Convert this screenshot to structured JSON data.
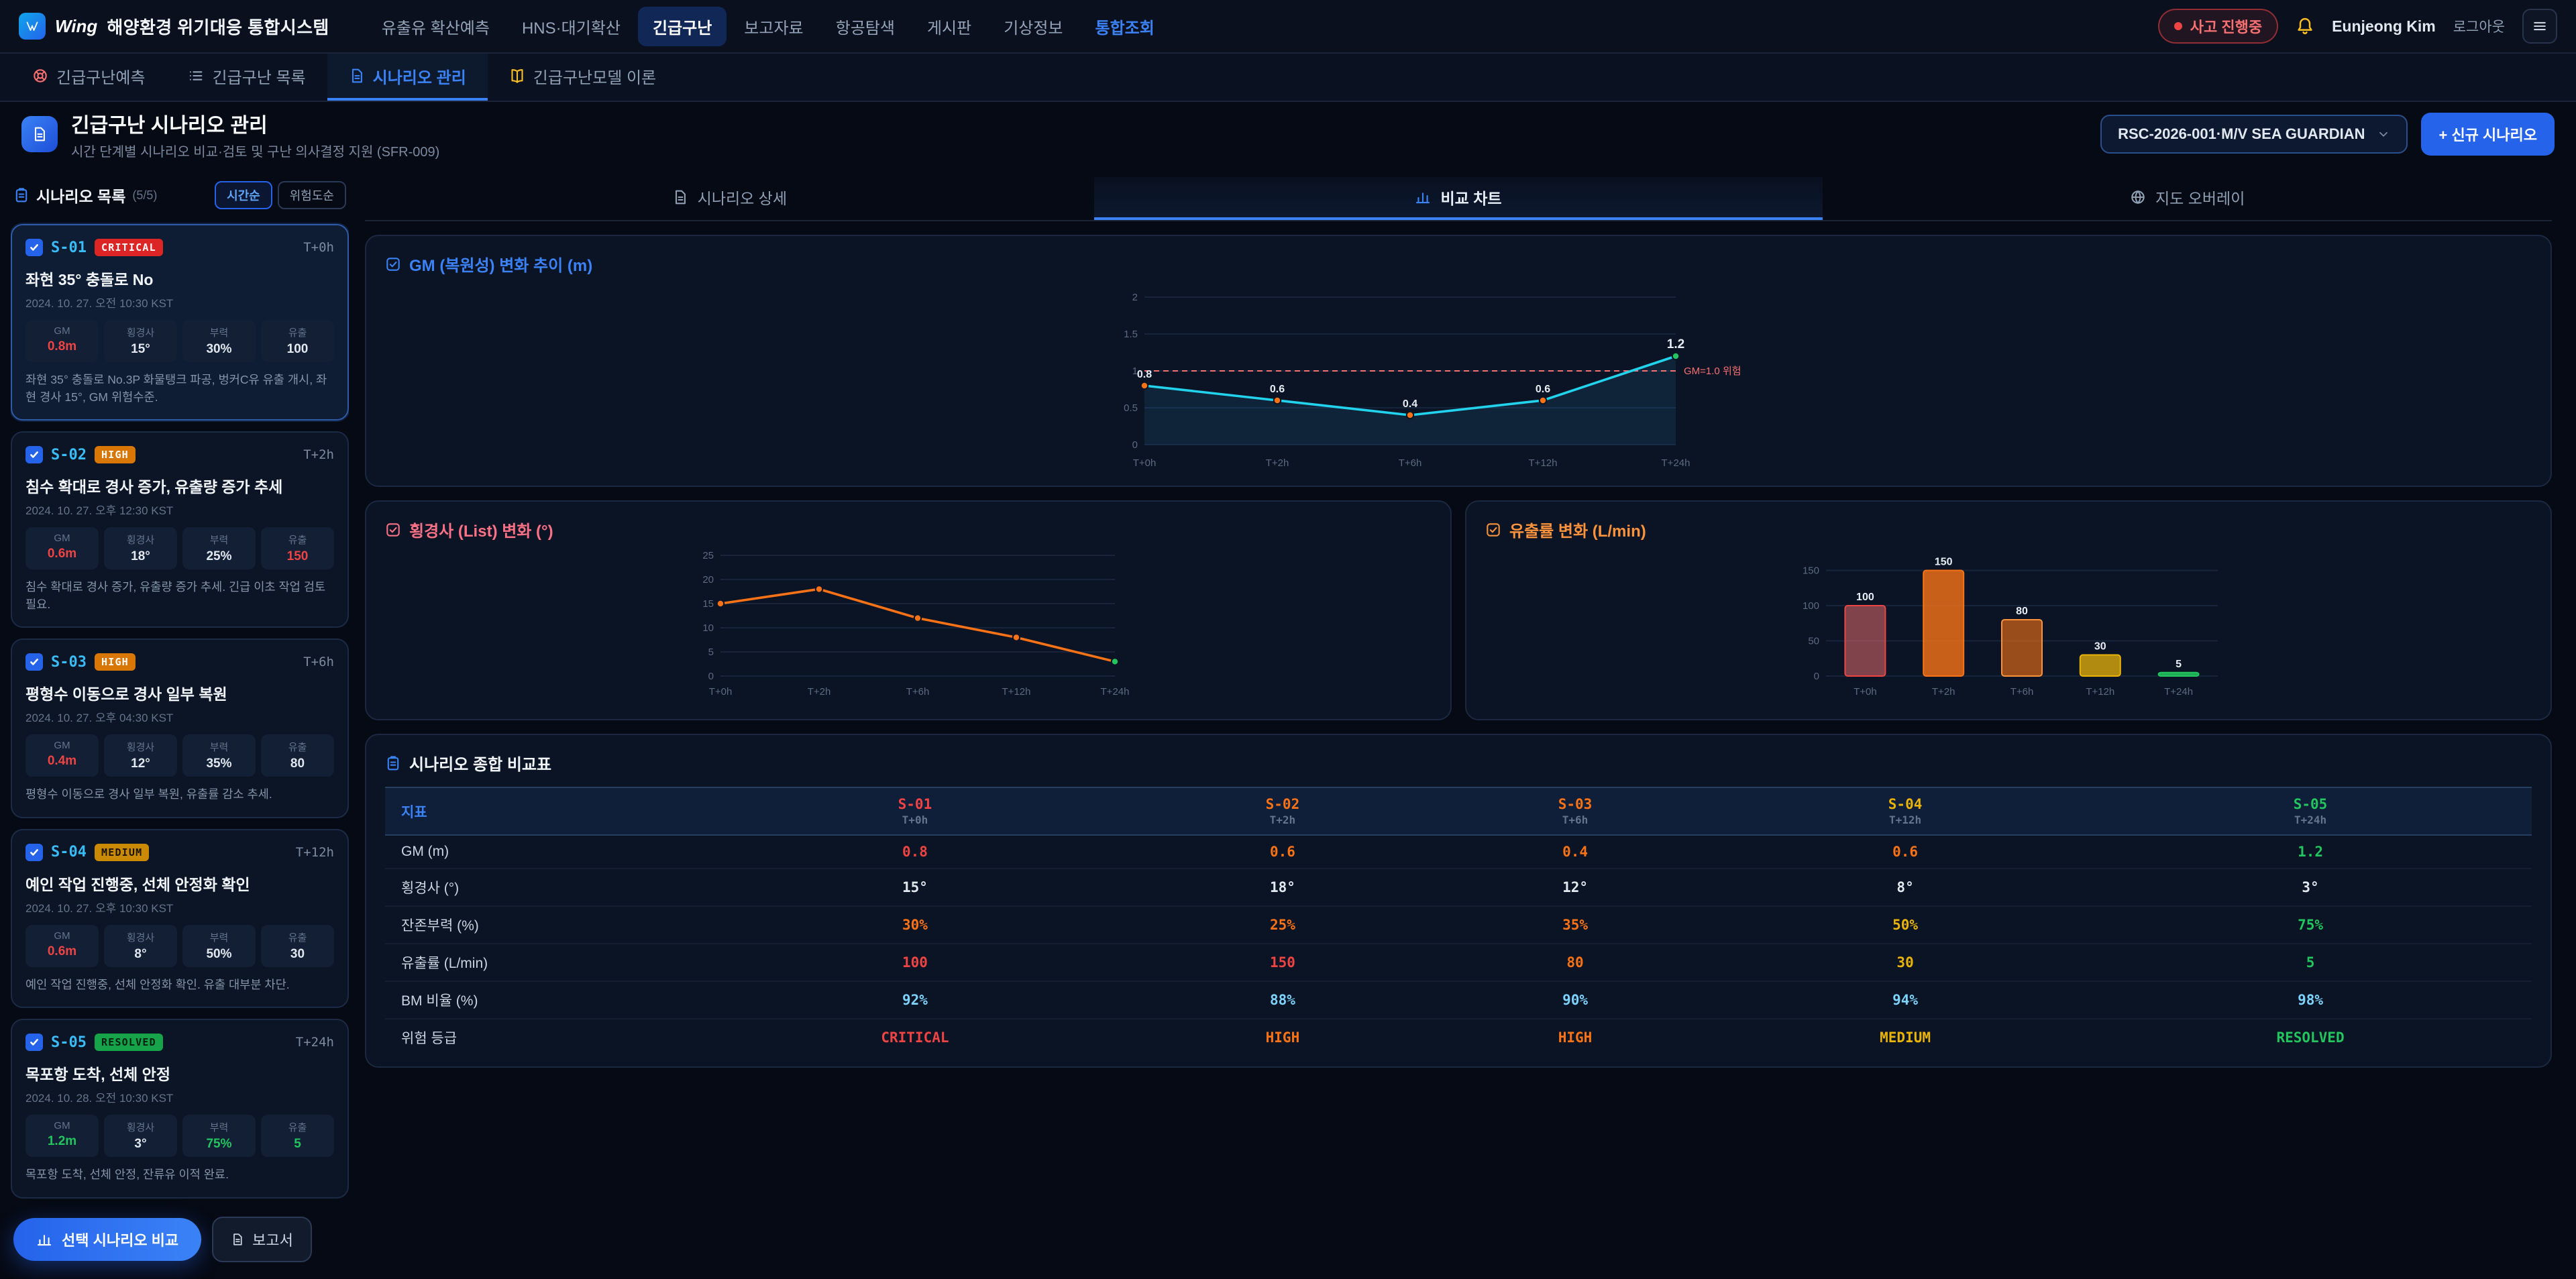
{
  "topnav": {
    "logo_text": "Wing",
    "app_title": "해양환경 위기대응 통합시스템",
    "items": [
      {
        "label": "유출유 확산예측",
        "state": "normal"
      },
      {
        "label": "HNS·대기확산",
        "state": "normal"
      },
      {
        "label": "긴급구난",
        "state": "active"
      },
      {
        "label": "보고자료",
        "state": "normal"
      },
      {
        "label": "항공탐색",
        "state": "normal"
      },
      {
        "label": "게시판",
        "state": "normal"
      },
      {
        "label": "기상정보",
        "state": "normal"
      },
      {
        "label": "통합조회",
        "state": "accent"
      }
    ],
    "incident_badge": "사고 진행중",
    "user_name": "Eunjeong Kim",
    "logout_label": "로그아웃"
  },
  "subtabs": [
    {
      "label": "긴급구난예측",
      "icon": "life-ring-icon",
      "icon_color": "#f87171",
      "active": false
    },
    {
      "label": "긴급구난 목록",
      "icon": "list-icon",
      "icon_color": "#94a3b8",
      "active": false
    },
    {
      "label": "시나리오 관리",
      "icon": "doc-icon",
      "icon_color": "#3b82f6",
      "active": true
    },
    {
      "label": "긴급구난모델 이론",
      "icon": "book-icon",
      "icon_color": "#fbbf24",
      "active": false
    }
  ],
  "page_header": {
    "title": "긴급구난 시나리오 관리",
    "subtitle": "시간 단계별 시나리오 비교·검토 및 구난 의사결정 지원 (SFR-009)",
    "vessel_selector": "RSC-2026-001·M/V SEA GUARDIAN",
    "new_scenario_button": "+ 신규 시나리오"
  },
  "sidebar": {
    "title": "시나리오 목록",
    "count": "(5/5)",
    "sort_buttons": [
      {
        "label": "시간순",
        "active": true
      },
      {
        "label": "위험도순",
        "active": false
      }
    ],
    "scenarios": [
      {
        "id": "S-01",
        "risk": "CRITICAL",
        "badge_bg": "#dc2626",
        "badge_fg": "#ffffff",
        "time_offset": "T+0h",
        "selected": true,
        "title": "좌현 35° 충돌로 No",
        "datetime": "2024. 10. 27. 오전 10:30 KST",
        "stats": [
          {
            "label": "GM",
            "value": "0.8m",
            "color": "#ef4444"
          },
          {
            "label": "횡경사",
            "value": "15°",
            "color": "#e2e8f0"
          },
          {
            "label": "부력",
            "value": "30%",
            "color": "#e2e8f0"
          },
          {
            "label": "유출",
            "value": "100",
            "color": "#e2e8f0"
          }
        ],
        "description": "좌현 35° 충돌로 No.3P 화물탱크 파공, 벙커C유 유출 개시, 좌현 경사 15°, GM 위험수준."
      },
      {
        "id": "S-02",
        "risk": "HIGH",
        "badge_bg": "#d97706",
        "badge_fg": "#ffffff",
        "time_offset": "T+2h",
        "selected": true,
        "title": "침수 확대로 경사 증가, 유출량 증가 추세",
        "datetime": "2024. 10. 27. 오후 12:30 KST",
        "stats": [
          {
            "label": "GM",
            "value": "0.6m",
            "color": "#ef4444"
          },
          {
            "label": "횡경사",
            "value": "18°",
            "color": "#e2e8f0"
          },
          {
            "label": "부력",
            "value": "25%",
            "color": "#e2e8f0"
          },
          {
            "label": "유출",
            "value": "150",
            "color": "#ef4444"
          }
        ],
        "description": "침수 확대로 경사 증가, 유출량 증가 추세. 긴급 이초 작업 검토 필요."
      },
      {
        "id": "S-03",
        "risk": "HIGH",
        "badge_bg": "#d97706",
        "badge_fg": "#ffffff",
        "time_offset": "T+6h",
        "selected": true,
        "title": "평형수 이동으로 경사 일부 복원",
        "datetime": "2024. 10. 27. 오후 04:30 KST",
        "stats": [
          {
            "label": "GM",
            "value": "0.4m",
            "color": "#ef4444"
          },
          {
            "label": "횡경사",
            "value": "12°",
            "color": "#e2e8f0"
          },
          {
            "label": "부력",
            "value": "35%",
            "color": "#e2e8f0"
          },
          {
            "label": "유출",
            "value": "80",
            "color": "#e2e8f0"
          }
        ],
        "description": "평형수 이동으로 경사 일부 복원, 유출률 감소 추세."
      },
      {
        "id": "S-04",
        "risk": "MEDIUM",
        "badge_bg": "#ca8a04",
        "badge_fg": "#1a1400",
        "time_offset": "T+12h",
        "selected": true,
        "title": "예인 작업 진행중, 선체 안정화 확인",
        "datetime": "2024. 10. 27. 오후 10:30 KST",
        "stats": [
          {
            "label": "GM",
            "value": "0.6m",
            "color": "#ef4444"
          },
          {
            "label": "횡경사",
            "value": "8°",
            "color": "#e2e8f0"
          },
          {
            "label": "부력",
            "value": "50%",
            "color": "#e2e8f0"
          },
          {
            "label": "유출",
            "value": "30",
            "color": "#e2e8f0"
          }
        ],
        "description": "예인 작업 진행중, 선체 안정화 확인. 유출 대부분 차단."
      },
      {
        "id": "S-05",
        "risk": "RESOLVED",
        "badge_bg": "#16a34a",
        "badge_fg": "#04210f",
        "time_offset": "T+24h",
        "selected": true,
        "title": "목포항 도착, 선체 안정",
        "datetime": "2024. 10. 28. 오전 10:30 KST",
        "stats": [
          {
            "label": "GM",
            "value": "1.2m",
            "color": "#22c55e"
          },
          {
            "label": "횡경사",
            "value": "3°",
            "color": "#e2e8f0"
          },
          {
            "label": "부력",
            "value": "75%",
            "color": "#22c55e"
          },
          {
            "label": "유출",
            "value": "5",
            "color": "#22c55e"
          }
        ],
        "description": "목포항 도착, 선체 안정, 잔류유 이적 완료."
      }
    ]
  },
  "content_tabs": [
    {
      "label": "시나리오 상세",
      "icon": "doc-icon",
      "active": false
    },
    {
      "label": "비교 차트",
      "icon": "bar-chart-icon",
      "active": true
    },
    {
      "label": "지도 오버레이",
      "icon": "map-icon",
      "active": false
    }
  ],
  "chart_data": [
    {
      "id": "gm",
      "type": "line",
      "title": "GM (복원성) 변화 추이 (m)",
      "categories": [
        "T+0h",
        "T+2h",
        "T+6h",
        "T+12h",
        "T+24h"
      ],
      "values": [
        0.8,
        0.6,
        0.4,
        0.6,
        1.2
      ],
      "ylim": [
        0,
        2
      ],
      "yticks": [
        0,
        0.5,
        1,
        1.5,
        2
      ],
      "threshold": {
        "value": 1.0,
        "label": "GM=1.0 위험",
        "color": "#f87171"
      },
      "line_color": "#22d3ee",
      "point_colors": [
        "#f97316",
        "#f97316",
        "#f97316",
        "#f97316",
        "#22c55e"
      ],
      "area_fill": "rgba(56,189,248,0.10)",
      "show_labels": true,
      "grid": true,
      "legend": "none"
    },
    {
      "id": "list-angle",
      "type": "line",
      "title": "횡경사 (List) 변화 (°)",
      "categories": [
        "T+0h",
        "T+2h",
        "T+6h",
        "T+12h",
        "T+24h"
      ],
      "values": [
        15,
        18,
        12,
        8,
        3
      ],
      "ylim": [
        0,
        25
      ],
      "yticks": [
        0,
        5,
        10,
        15,
        20,
        25
      ],
      "line_color": "#f97316",
      "point_colors": [
        "#f97316",
        "#f97316",
        "#f97316",
        "#f97316",
        "#22c55e"
      ],
      "show_labels": false,
      "grid": true,
      "legend": "none"
    },
    {
      "id": "spill-rate",
      "type": "bar",
      "title": "유출률 변화 (L/min)",
      "categories": [
        "T+0h",
        "T+2h",
        "T+6h",
        "T+12h",
        "T+24h"
      ],
      "values": [
        100,
        150,
        80,
        30,
        5
      ],
      "ylim": [
        0,
        160
      ],
      "yticks": [
        0,
        50,
        100,
        150
      ],
      "bar_colors": [
        {
          "fill": "rgba(248,113,113,0.50)",
          "stroke": "#ef4444"
        },
        {
          "fill": "rgba(249,115,22,0.80)",
          "stroke": "#f97316"
        },
        {
          "fill": "rgba(249,115,22,0.60)",
          "stroke": "#fb923c"
        },
        {
          "fill": "rgba(234,179,8,0.75)",
          "stroke": "#eab308"
        },
        {
          "fill": "rgba(34,197,94,0.85)",
          "stroke": "#22c55e"
        }
      ],
      "show_labels": true,
      "grid": true,
      "legend": "none"
    }
  ],
  "comparison_table": {
    "title": "시나리오 종합 비교표",
    "header_label": "지표",
    "columns": [
      {
        "id": "S-01",
        "time": "T+0h",
        "color": "#ef4444"
      },
      {
        "id": "S-02",
        "time": "T+2h",
        "color": "#f97316"
      },
      {
        "id": "S-03",
        "time": "T+6h",
        "color": "#f97316"
      },
      {
        "id": "S-04",
        "time": "T+12h",
        "color": "#eab308"
      },
      {
        "id": "S-05",
        "time": "T+24h",
        "color": "#22c55e"
      }
    ],
    "rows": [
      {
        "label": "GM (m)",
        "cells": [
          [
            "0.8",
            "#ef4444"
          ],
          [
            "0.6",
            "#f97316"
          ],
          [
            "0.4",
            "#f97316"
          ],
          [
            "0.6",
            "#f97316"
          ],
          [
            "1.2",
            "#22c55e"
          ]
        ]
      },
      {
        "label": "횡경사 (°)",
        "cells": [
          [
            "15°",
            "#e2e8f0"
          ],
          [
            "18°",
            "#e2e8f0"
          ],
          [
            "12°",
            "#e2e8f0"
          ],
          [
            "8°",
            "#e2e8f0"
          ],
          [
            "3°",
            "#e2e8f0"
          ]
        ]
      },
      {
        "label": "잔존부력 (%)",
        "cells": [
          [
            "30%",
            "#f97316"
          ],
          [
            "25%",
            "#f97316"
          ],
          [
            "35%",
            "#f97316"
          ],
          [
            "50%",
            "#eab308"
          ],
          [
            "75%",
            "#22c55e"
          ]
        ]
      },
      {
        "label": "유출률 (L/min)",
        "cells": [
          [
            "100",
            "#ef4444"
          ],
          [
            "150",
            "#ef4444"
          ],
          [
            "80",
            "#f97316"
          ],
          [
            "30",
            "#eab308"
          ],
          [
            "5",
            "#22c55e"
          ]
        ]
      },
      {
        "label": "BM 비율 (%)",
        "cells": [
          [
            "92%",
            "#7dd3fc"
          ],
          [
            "88%",
            "#7dd3fc"
          ],
          [
            "90%",
            "#7dd3fc"
          ],
          [
            "94%",
            "#7dd3fc"
          ],
          [
            "98%",
            "#7dd3fc"
          ]
        ]
      },
      {
        "label": "위험 등급",
        "cells": [
          [
            "CRITICAL",
            "#ef4444"
          ],
          [
            "HIGH",
            "#f97316"
          ],
          [
            "HIGH",
            "#f97316"
          ],
          [
            "MEDIUM",
            "#eab308"
          ],
          [
            "RESOLVED",
            "#22c55e"
          ]
        ]
      }
    ]
  },
  "footer": {
    "compare_button": "선택 시나리오 비교",
    "report_button": "보고서"
  },
  "colors": {
    "accent": "#3b82f6",
    "critical": "#ef4444",
    "high": "#f97316",
    "medium": "#eab308",
    "resolved": "#22c55e",
    "cyan": "#22d3ee"
  }
}
